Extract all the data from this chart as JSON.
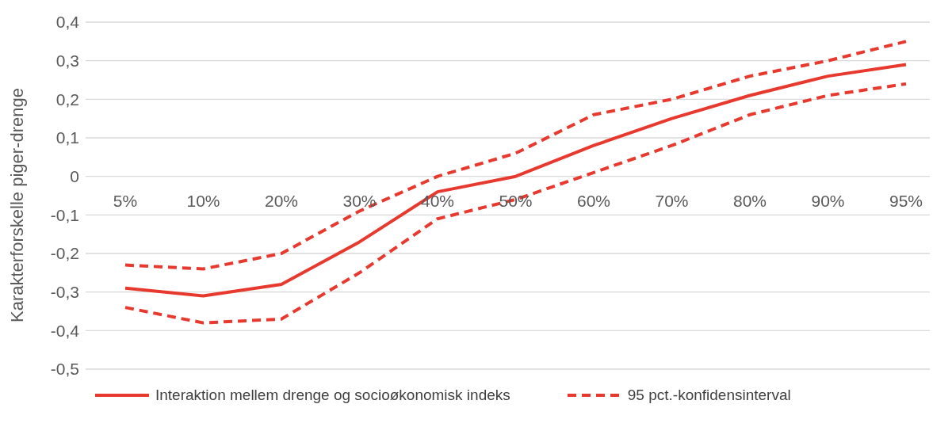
{
  "chart_data": {
    "type": "line",
    "ylabel": "Karakterforskelle piger-drenge",
    "categories": [
      "5%",
      "10%",
      "20%",
      "30%",
      "40%",
      "50%",
      "60%",
      "70%",
      "80%",
      "90%",
      "95%"
    ],
    "series": [
      {
        "name": "Interaktion mellem drenge og socioøkonomisk indeks",
        "color": "#e8392f",
        "line_style": "solid",
        "values": [
          -0.29,
          -0.31,
          -0.28,
          -0.17,
          -0.04,
          0.0,
          0.08,
          0.15,
          0.21,
          0.26,
          0.29
        ]
      },
      {
        "name": "95 pct.-konfidensinterval",
        "color": "#e8392f",
        "line_style": "dashed",
        "values": [
          -0.23,
          -0.24,
          -0.2,
          -0.09,
          0.0,
          0.06,
          0.16,
          0.2,
          0.26,
          0.3,
          0.35
        ]
      },
      {
        "color": "#e8392f",
        "line_style": "dashed",
        "values": [
          -0.34,
          -0.38,
          -0.37,
          -0.25,
          -0.11,
          -0.06,
          0.01,
          0.08,
          0.16,
          0.21,
          0.24
        ]
      }
    ],
    "ylim": [
      -0.5,
      0.4
    ],
    "yticks": [
      {
        "value": -0.5,
        "label": "-0,5"
      },
      {
        "value": -0.4,
        "label": "-0,4"
      },
      {
        "value": -0.3,
        "label": "-0,3"
      },
      {
        "value": -0.2,
        "label": "-0,2"
      },
      {
        "value": -0.1,
        "label": "-0,1"
      },
      0,
      {
        "value": 0.1,
        "label": "0,1"
      },
      {
        "value": 0.2,
        "label": "0,2"
      },
      {
        "value": 0.3,
        "label": "0,3"
      },
      {
        "value": 0.4,
        "label": "0,4"
      }
    ],
    "grid": "y",
    "legend": "bottom",
    "marker": "none"
  }
}
